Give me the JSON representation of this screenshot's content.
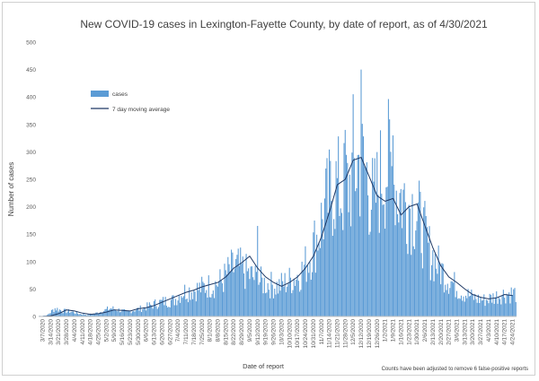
{
  "chart_data": {
    "type": "bar",
    "title": "New COVID-19 cases in Lexington-Fayette County, by date of report, as of 4/30/2021",
    "xlabel": "Date of report",
    "ylabel": "Number of cases",
    "ylim": [
      0,
      500
    ],
    "yticks": [
      0,
      50,
      100,
      150,
      200,
      250,
      300,
      350,
      400,
      450,
      500
    ],
    "grid": false,
    "legend_placement": "top-left",
    "x_tick_labels": [
      "3/7/2020",
      "3/14/2020",
      "3/21/2020",
      "3/28/2020",
      "4/4/2020",
      "4/11/2020",
      "4/18/2020",
      "4/25/2020",
      "5/2/2020",
      "5/9/2020",
      "5/16/2020",
      "5/23/2020",
      "5/30/2020",
      "6/6/2020",
      "6/13/2020",
      "6/20/2020",
      "6/27/2020",
      "7/4/2020",
      "7/11/2020",
      "7/18/2020",
      "7/25/2020",
      "8/1/2020",
      "8/8/2020",
      "8/15/2020",
      "8/22/2020",
      "8/29/2020",
      "9/5/2020",
      "9/12/2020",
      "9/19/2020",
      "9/26/2020",
      "10/3/2020",
      "10/10/2020",
      "10/17/2020",
      "10/24/2020",
      "10/31/2020",
      "11/7/2020",
      "11/14/2020",
      "11/21/2020",
      "11/28/2020",
      "12/5/2020",
      "12/12/2020",
      "12/19/2020",
      "12/26/2020",
      "1/2/2021",
      "1/9/2021",
      "1/16/2021",
      "1/23/2021",
      "1/30/2021",
      "2/6/2021",
      "2/13/2021",
      "2/20/2021",
      "2/27/2021",
      "3/6/2021",
      "3/13/2021",
      "3/20/2021",
      "3/27/2021",
      "4/3/2021",
      "4/10/2021",
      "4/17/2021",
      "4/24/2021"
    ],
    "series": [
      {
        "name": "cases",
        "kind": "bar",
        "color": "#5b9bd5",
        "weekly_values": [
          1,
          2,
          15,
          10,
          9,
          5,
          3,
          5,
          10,
          15,
          12,
          8,
          12,
          15,
          20,
          25,
          28,
          30,
          45,
          48,
          50,
          55,
          58,
          65,
          85,
          90,
          80,
          70,
          62,
          58,
          55,
          62,
          70,
          82,
          110,
          150,
          200,
          240,
          225,
          240,
          280,
          265,
          200,
          260,
          280,
          225,
          210,
          200,
          165,
          120,
          95,
          75,
          60,
          45,
          38,
          32,
          30,
          35,
          40,
          42
        ],
        "peaks": [
          {
            "date": "12/12/2020",
            "value": 450
          },
          {
            "date": "12/5/2020",
            "value": 405
          },
          {
            "date": "1/9/2021",
            "value": 330
          },
          {
            "date": "11/28/2020",
            "value": 340
          },
          {
            "date": "9/12/2020",
            "value": 165
          }
        ]
      },
      {
        "name": "7 day moving average",
        "kind": "line",
        "color": "#1f3864",
        "weekly_values": [
          0,
          1,
          5,
          12,
          10,
          6,
          4,
          5,
          8,
          12,
          11,
          10,
          14,
          16,
          20,
          26,
          32,
          38,
          44,
          48,
          54,
          58,
          62,
          72,
          88,
          98,
          110,
          88,
          72,
          62,
          55,
          62,
          72,
          88,
          110,
          145,
          190,
          240,
          250,
          285,
          290,
          255,
          220,
          210,
          215,
          185,
          200,
          205,
          165,
          125,
          92,
          72,
          62,
          50,
          40,
          35,
          32,
          34,
          40,
          38
        ]
      }
    ],
    "footnote": "Counts have been adjusted to remove 6 false-positive reports"
  }
}
